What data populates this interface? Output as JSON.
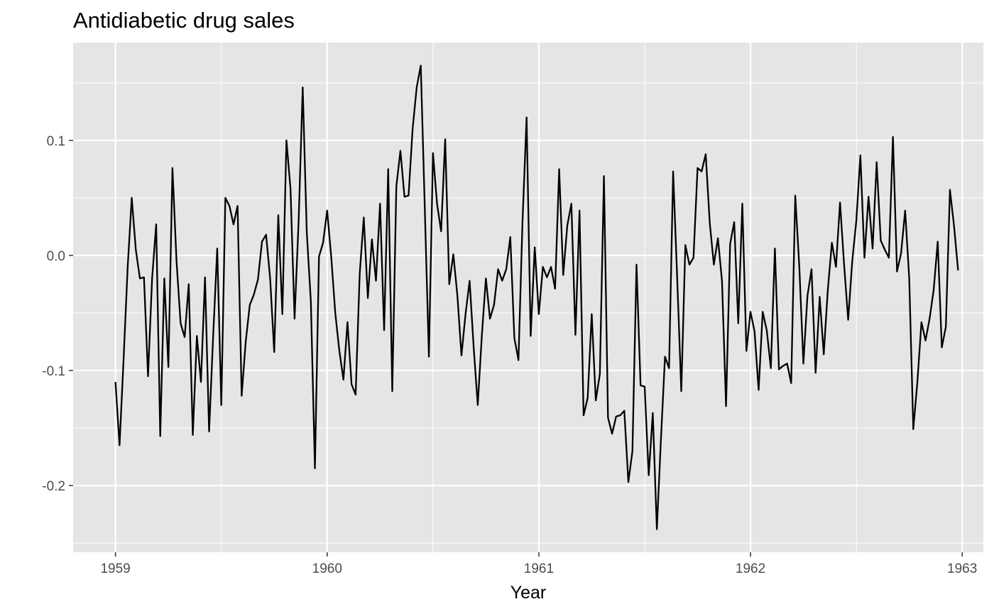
{
  "chart_data": {
    "type": "line",
    "title": "Antidiabetic drug sales",
    "xlabel": "Year",
    "ylabel": "",
    "xlim": [
      1958.8,
      1963.1
    ],
    "ylim": [
      -0.258,
      0.185
    ],
    "x_ticks": [
      1959,
      1960,
      1961,
      1962,
      1963
    ],
    "x_tick_labels": [
      "1959",
      "1960",
      "1961",
      "1962",
      "1963"
    ],
    "y_ticks": [
      0.1,
      0.0,
      -0.1,
      -0.2
    ],
    "y_tick_labels": [
      "0.1",
      "0.0",
      "-0.1",
      "-0.2"
    ],
    "grid": true,
    "legend": "none",
    "colors": {
      "panel": "#e5e5e5",
      "grid": "#ffffff",
      "line": "#000000"
    },
    "series": [
      {
        "x_start": 1959.0,
        "x_step": 0.01923,
        "values": [
          -0.11,
          -0.165,
          -0.09,
          -0.01,
          0.05,
          0.005,
          -0.02,
          -0.019,
          -0.105,
          -0.02,
          0.027,
          -0.157,
          -0.02,
          -0.097,
          0.076,
          -0.005,
          -0.059,
          -0.071,
          -0.025,
          -0.156,
          -0.07,
          -0.11,
          -0.019,
          -0.153,
          -0.07,
          0.006,
          -0.13,
          0.05,
          0.043,
          0.027,
          0.043,
          -0.122,
          -0.075,
          -0.043,
          -0.034,
          -0.021,
          0.012,
          0.018,
          -0.02,
          -0.084,
          0.035,
          -0.051,
          0.1,
          0.058,
          -0.055,
          0.03,
          0.146,
          0.02,
          -0.04,
          -0.185,
          -0.001,
          0.011,
          0.039,
          -0.001,
          -0.05,
          -0.083,
          -0.108,
          -0.058,
          -0.112,
          -0.121,
          -0.016,
          0.033,
          -0.037,
          0.014,
          -0.022,
          0.045,
          -0.065,
          0.075,
          -0.118,
          0.06,
          0.091,
          0.051,
          0.052,
          0.11,
          0.146,
          0.165,
          0.04,
          -0.088,
          0.089,
          0.045,
          0.021,
          0.101,
          -0.025,
          0.001,
          -0.035,
          -0.087,
          -0.051,
          -0.022,
          -0.08,
          -0.13,
          -0.07,
          -0.02,
          -0.055,
          -0.043,
          -0.012,
          -0.022,
          -0.012,
          0.016,
          -0.072,
          -0.091,
          0.03,
          0.12,
          -0.07,
          0.007,
          -0.051,
          -0.01,
          -0.019,
          -0.01,
          -0.029,
          0.075,
          -0.017,
          0.026,
          0.045,
          -0.069,
          0.039,
          -0.139,
          -0.124,
          -0.051,
          -0.126,
          -0.103,
          0.069,
          -0.141,
          -0.155,
          -0.14,
          -0.139,
          -0.135,
          -0.197,
          -0.17,
          -0.008,
          -0.113,
          -0.114,
          -0.191,
          -0.137,
          -0.238,
          -0.16,
          -0.088,
          -0.098,
          0.073,
          -0.02,
          -0.118,
          0.009,
          -0.008,
          -0.002,
          0.076,
          0.073,
          0.088,
          0.028,
          -0.008,
          0.015,
          -0.022,
          -0.131,
          0.01,
          0.029,
          -0.059,
          0.045,
          -0.083,
          -0.049,
          -0.066,
          -0.117,
          -0.049,
          -0.065,
          -0.098,
          0.006,
          -0.099,
          -0.096,
          -0.094,
          -0.111,
          0.052,
          -0.01,
          -0.094,
          -0.035,
          -0.012,
          -0.102,
          -0.036,
          -0.086,
          -0.03,
          0.011,
          -0.01,
          0.046,
          -0.008,
          -0.056,
          -0.005,
          0.03,
          0.087,
          -0.002,
          0.051,
          0.006,
          0.081,
          0.013,
          0.005,
          -0.002,
          0.103,
          -0.014,
          0.002,
          0.039,
          -0.02,
          -0.151,
          -0.11,
          -0.058,
          -0.074,
          -0.055,
          -0.03,
          0.012,
          -0.08,
          -0.062,
          0.057,
          0.026,
          -0.013
        ]
      }
    ]
  }
}
